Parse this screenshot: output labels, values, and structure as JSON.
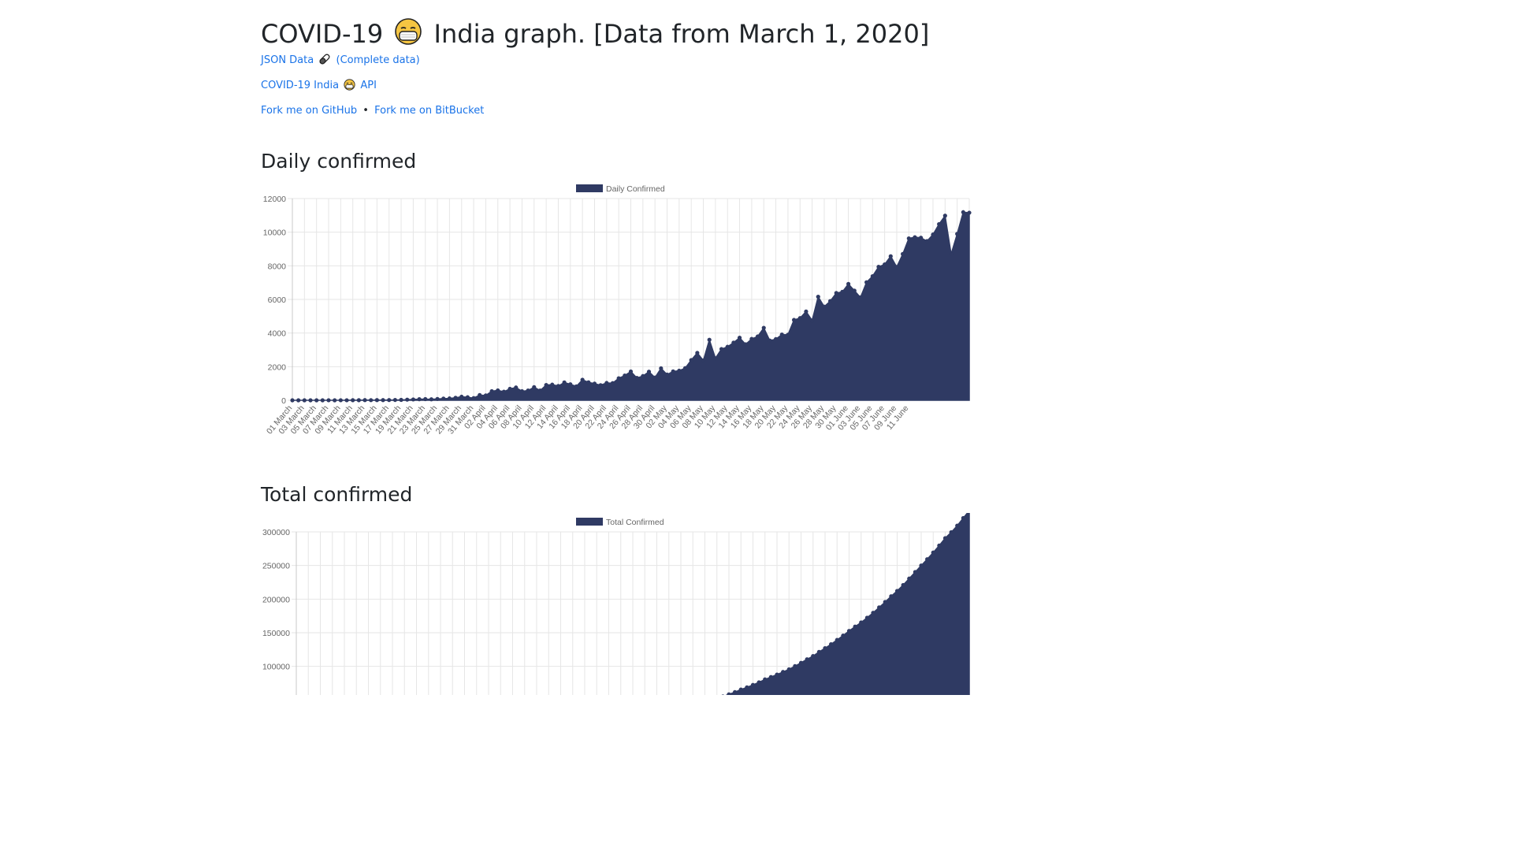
{
  "page": {
    "title_pre": "COVID-19",
    "title_post": "India graph. [Data from March 1, 2020]",
    "links": {
      "json_data": "JSON Data",
      "complete_data": "(Complete data)",
      "api_pre": "COVID-19 India",
      "api_post": "API",
      "github": "Fork me on GitHub",
      "bullet": "•",
      "bitbucket": "Fork me on BitBucket"
    },
    "sections": {
      "daily": "Daily confirmed",
      "total": "Total confirmed"
    }
  },
  "colors": {
    "series": "#2f3a63",
    "grid": "#e6e6e6",
    "link": "#1a73e8"
  },
  "chart_data": [
    {
      "type": "area",
      "title": "",
      "legend": "Daily Confirmed",
      "legend_position": "top",
      "grid": true,
      "ylim": [
        0,
        12000
      ],
      "yticks": [
        0,
        2000,
        4000,
        6000,
        8000,
        10000,
        12000
      ],
      "xlabels": [
        "01 March",
        "03 March",
        "05 March",
        "07 March",
        "09 March",
        "11 March",
        "13 March",
        "15 March",
        "17 March",
        "19 March",
        "21 March",
        "23 March",
        "25 March",
        "27 March",
        "29 March",
        "31 March",
        "02 April",
        "04 April",
        "06 April",
        "08 April",
        "10 April",
        "12 April",
        "14 April",
        "16 April",
        "18 April",
        "20 April",
        "22 April",
        "24 April",
        "26 April",
        "28 April",
        "30 April",
        "02 May",
        "04 May",
        "06 May",
        "08 May",
        "10 May",
        "12 May",
        "14 May",
        "16 May",
        "18 May",
        "20 May",
        "22 May",
        "24 May",
        "26 May",
        "28 May",
        "30 May",
        "01 June",
        "03 June",
        "05 June",
        "07 June",
        "09 June",
        "11 June"
      ],
      "values": [
        0,
        0,
        1,
        0,
        0,
        1,
        2,
        1,
        2,
        3,
        6,
        5,
        12,
        9,
        11,
        11,
        14,
        19,
        24,
        37,
        50,
        65,
        70,
        58,
        80,
        100,
        110,
        150,
        210,
        180,
        130,
        310,
        290,
        540,
        590,
        510,
        680,
        760,
        540,
        580,
        780,
        580,
        910,
        930,
        850,
        1060,
        950,
        830,
        1220,
        1070,
        990,
        900,
        1030,
        1020,
        1310,
        1470,
        1710,
        1330,
        1440,
        1700,
        1350,
        1900,
        1530,
        1720,
        1760,
        1910,
        2390,
        2820,
        2370,
        3600,
        2500,
        3050,
        3180,
        3430,
        3720,
        3330,
        3650,
        3800,
        4310,
        3550,
        3640,
        3910,
        3900,
        4780,
        4890,
        5280,
        4750,
        6160,
        5570,
        5900,
        6380,
        6450,
        6920,
        6520,
        6120,
        7020,
        7380,
        7940,
        8080,
        8570,
        7930,
        8700,
        9630,
        9700,
        9670,
        9470,
        9860,
        10480,
        10980,
        8700,
        9900,
        11190,
        11160
      ]
    },
    {
      "type": "area",
      "title": "",
      "legend": "Total Confirmed",
      "legend_position": "top",
      "grid": true,
      "ylim": [
        0,
        300000
      ],
      "yticks": [
        100000,
        150000,
        200000,
        250000,
        300000
      ],
      "cumulative_of_daily": true
    }
  ]
}
